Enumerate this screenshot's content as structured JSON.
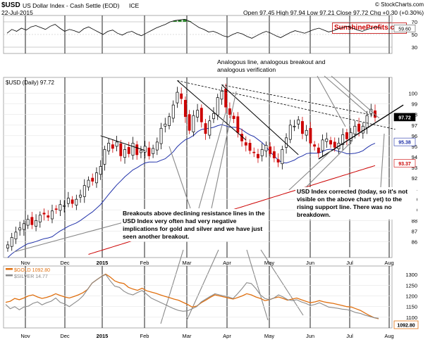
{
  "header": {
    "symbol": "$USD",
    "name": "US Dollar Index - Cash Settle (EOD)",
    "exchange": "ICE",
    "date": "22-Jul-2015",
    "quote": "Open 97.45  High 97.94  Low 97.21  Close 97.72  Chg +0.30 (+0.30%)",
    "credit": "© StockCharts.com",
    "brand": "SunshineProfits.com"
  },
  "colors": {
    "candle_up": "#000000",
    "candle_down": "#cc0000",
    "ma50": "#2233aa",
    "ma200": "#cc0000",
    "gold": "#e07010",
    "silver": "#8a8a8a",
    "rsi_fill": "#2e8b2e",
    "last_price_box": "#000000",
    "ma50_box": "#2233aa",
    "ma200_box": "#cc0000",
    "gold_box": "#e07010"
  },
  "annotations": {
    "top": "Analogous line, analogous breakout and analogous verification",
    "middle": "Breakouts above declining resistance lines in the USD Index very often had very negative implications for gold and silver and we have just seen another breakout.",
    "right": "USD Index corrected (today, so it's not visible on the above chart yet) to the rising support line. There was no breakdown."
  },
  "chart_data": [
    {
      "name": "rsi",
      "type": "line",
      "title": "",
      "ylim": [
        20,
        80
      ],
      "yticks": [
        30,
        50,
        70
      ],
      "overbought": 70,
      "oversold": 30,
      "last_value_label": "59.60",
      "values": [
        52,
        58,
        55,
        60,
        57,
        62,
        64,
        61,
        58,
        63,
        66,
        60,
        55,
        58,
        56,
        53,
        59,
        62,
        58,
        54,
        50,
        55,
        57,
        52,
        49,
        53,
        55,
        51,
        48,
        52,
        56,
        60,
        63,
        66,
        70,
        72,
        73,
        74,
        71,
        66,
        61,
        58,
        54,
        55,
        52,
        48,
        46,
        50,
        53,
        51,
        47,
        44,
        48,
        52,
        55,
        52,
        48,
        45,
        49,
        53,
        56,
        54,
        52,
        55,
        58,
        60,
        57,
        54,
        56,
        59,
        61,
        63,
        60,
        57,
        55,
        58,
        60,
        62,
        59.6
      ]
    },
    {
      "name": "price",
      "type": "candlestick",
      "title": "$USD (Daily) 97.72",
      "ylim": [
        84.5,
        101.5
      ],
      "yticks": [
        86,
        87,
        88,
        89,
        90,
        91,
        92,
        93,
        94,
        95,
        96,
        97,
        98,
        99,
        100
      ],
      "x_labels": [
        "Nov",
        "Dec",
        "2015",
        "Feb",
        "Mar",
        "Apr",
        "May",
        "Jun",
        "Jul",
        "Aug"
      ],
      "closes": [
        85.7,
        86.4,
        86.9,
        87.3,
        87.7,
        88.1,
        87.6,
        88.0,
        88.5,
        88.6,
        88.3,
        88.9,
        89.1,
        89.5,
        89.4,
        90.1,
        89.6,
        90.0,
        90.4,
        91.3,
        91.8,
        91.7,
        92.5,
        93.1,
        94.7,
        95.3,
        94.8,
        95.4,
        94.1,
        94.7,
        94.3,
        95.3,
        94.2,
        94.6,
        95.0,
        94.1,
        94.8,
        95.4,
        96.7,
        97.1,
        97.8,
        98.9,
        100.1,
        99.5,
        97.8,
        96.5,
        97.9,
        98.4,
        97.3,
        96.2,
        97.4,
        98.1,
        99.6,
        100.2,
        98.7,
        98.0,
        97.6,
        96.3,
        95.5,
        95.1,
        94.6,
        94.4,
        93.9,
        94.7,
        95.1,
        94.3,
        93.9,
        93.5,
        94.7,
        95.8,
        97.0,
        96.9,
        97.5,
        96.2,
        96.5,
        95.3,
        95.0,
        94.4,
        95.6,
        95.7,
        95.2,
        94.9,
        95.3,
        96.1,
        95.7,
        96.3,
        96.9,
        96.4,
        96.9,
        97.9,
        98.5,
        97.72
      ],
      "sma50_label": "95.38",
      "sma200_label": "93.37",
      "last_label": "97.72"
    },
    {
      "name": "gold_silver",
      "type": "line",
      "ylim": [
        1050,
        1340
      ],
      "yticks": [
        1100,
        1150,
        1200,
        1250,
        1300
      ],
      "ytick_labels": [
        "1100",
        "1150",
        "1200",
        "1250",
        "1300"
      ],
      "series": [
        {
          "name": "$GOLD 1092.80",
          "color": "#e07010",
          "last_label": "1092.80",
          "values": [
            1170,
            1175,
            1188,
            1182,
            1190,
            1200,
            1205,
            1195,
            1188,
            1193,
            1200,
            1210,
            1202,
            1195,
            1190,
            1197,
            1205,
            1215,
            1230,
            1260,
            1275,
            1290,
            1302,
            1288,
            1270,
            1262,
            1258,
            1240,
            1232,
            1226,
            1236,
            1224,
            1218,
            1212,
            1205,
            1198,
            1192,
            1185,
            1180,
            1170,
            1160,
            1148,
            1152,
            1168,
            1180,
            1193,
            1205,
            1200,
            1195,
            1190,
            1185,
            1192,
            1200,
            1210,
            1205,
            1195,
            1188,
            1178,
            1182,
            1190,
            1195,
            1188,
            1180,
            1185,
            1190,
            1182,
            1175,
            1168,
            1172,
            1178,
            1172,
            1168,
            1165,
            1160,
            1155,
            1150,
            1148,
            1140,
            1132,
            1120,
            1108,
            1098,
            1092.8
          ]
        },
        {
          "name": "$SILVER 14.77",
          "color": "#8a8a8a",
          "last_label": "14.77",
          "values": [
            1160,
            1140,
            1150,
            1135,
            1148,
            1152,
            1165,
            1172,
            1158,
            1168,
            1175,
            1190,
            1170,
            1162,
            1150,
            1165,
            1180,
            1200,
            1230,
            1260,
            1275,
            1290,
            1300,
            1270,
            1245,
            1240,
            1222,
            1210,
            1205,
            1216,
            1225,
            1208,
            1190,
            1180,
            1170,
            1160,
            1150,
            1140,
            1132,
            1128,
            1130,
            1140,
            1150,
            1172,
            1185,
            1198,
            1210,
            1205,
            1200,
            1195,
            1188,
            1210,
            1235,
            1262,
            1258,
            1235,
            1205,
            1188,
            1182,
            1190,
            1205,
            1195,
            1182,
            1178,
            1182,
            1172,
            1165,
            1155,
            1160,
            1168,
            1158,
            1148,
            1145,
            1142,
            1138,
            1136,
            1130,
            1122,
            1118,
            1110,
            1104,
            1098,
            1095
          ]
        }
      ],
      "x_labels": [
        "Nov",
        "Dec",
        "2015",
        "Feb",
        "Mar",
        "Apr",
        "May",
        "Jun",
        "Jul",
        "Aug"
      ]
    }
  ]
}
